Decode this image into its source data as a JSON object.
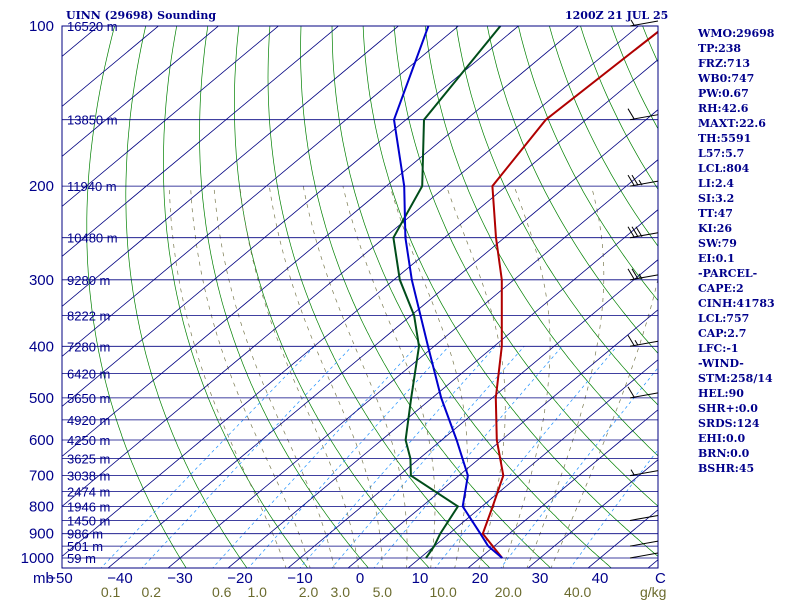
{
  "header": {
    "station": "UINN (29698) Sounding",
    "valid": "1200Z 21 JUL 25"
  },
  "indices": [
    "WMO:29698",
    "TP:238",
    "FRZ:713",
    "WB0:747",
    "PW:0.67",
    "RH:42.6",
    "MAXT:22.6",
    "TH:5591",
    "L57:5.7",
    "LCL:804",
    "LI:2.4",
    "SI:3.2",
    "TT:47",
    "KI:26",
    "SW:79",
    "EI:0.1",
    "-PARCEL-",
    "CAPE:2",
    "CINH:41783",
    "LCL:757",
    "CAP:2.7",
    "LFC:-1",
    "-WIND-",
    "STM:258/14",
    "HEL:90",
    "SHR+:0.0",
    "SRDS:124",
    "EHI:0.0",
    "BRN:0.0",
    "BSHR:45"
  ],
  "colors": {
    "frame": "#000080",
    "isobar": "#000080",
    "isotherm": "#000080",
    "dry_adiabat": "#008000",
    "moist_adiabat": "#7a7a50",
    "mixing_ratio": "#1e90ff",
    "temperature": "#b00000",
    "dewpoint": "#004d1a",
    "parcel": "#0000cd",
    "axis_text": "#00008b",
    "mix_text": "#6b6b2e"
  },
  "chart_data": {
    "type": "line",
    "title": "",
    "x_unit": "C",
    "y_unit": "mb",
    "mix_unit": "g/kg",
    "pressure_ticks": [
      100,
      200,
      300,
      400,
      500,
      600,
      700,
      800,
      900,
      1000
    ],
    "temp_ticks": [
      -50,
      -40,
      -30,
      -20,
      -10,
      0,
      10,
      20,
      30,
      40
    ],
    "mixing_ratio_labels": [
      "0.1",
      "0.2",
      "0.6",
      "1.0",
      "2.0",
      "3.0",
      "5.0",
      "10.0",
      "20.0",
      "40.0"
    ],
    "height_labels": [
      {
        "p": 100,
        "h": "16520 m"
      },
      {
        "p": 150,
        "h": "13850 m"
      },
      {
        "p": 200,
        "h": "11940 m"
      },
      {
        "p": 250,
        "h": "10480 m"
      },
      {
        "p": 300,
        "h": "9280 m"
      },
      {
        "p": 350,
        "h": "8222 m"
      },
      {
        "p": 400,
        "h": "7280 m"
      },
      {
        "p": 450,
        "h": "6420 m"
      },
      {
        "p": 500,
        "h": "5650 m"
      },
      {
        "p": 550,
        "h": "4920 m"
      },
      {
        "p": 600,
        "h": "4250 m"
      },
      {
        "p": 650,
        "h": "3625 m"
      },
      {
        "p": 700,
        "h": "3038 m"
      },
      {
        "p": 750,
        "h": "2474 m"
      },
      {
        "p": 800,
        "h": "1946 m"
      },
      {
        "p": 850,
        "h": "1450 m"
      },
      {
        "p": 900,
        "h": "986 m"
      },
      {
        "p": 950,
        "h": "501 m"
      },
      {
        "p": 1000,
        "h": "59 m"
      }
    ],
    "series": [
      {
        "key": "temperature",
        "points": [
          [
            1000,
            23.7
          ],
          [
            900,
            15.6
          ],
          [
            800,
            11.8
          ],
          [
            700,
            7.4
          ],
          [
            600,
            -0.8
          ],
          [
            500,
            -9.4
          ],
          [
            400,
            -18.7
          ],
          [
            300,
            -32.0
          ],
          [
            250,
            -41.4
          ],
          [
            200,
            -52.3
          ],
          [
            150,
            -56.7
          ],
          [
            100,
            -55.5
          ]
        ]
      },
      {
        "key": "dewpoint",
        "points": [
          [
            1000,
            11.0
          ],
          [
            950,
            10.0
          ],
          [
            900,
            8.5
          ],
          [
            800,
            6.0
          ],
          [
            700,
            -8.0
          ],
          [
            650,
            -11.5
          ],
          [
            600,
            -16.0
          ],
          [
            500,
            -23.5
          ],
          [
            400,
            -32.5
          ],
          [
            350,
            -39.5
          ],
          [
            300,
            -49.0
          ],
          [
            250,
            -58.5
          ],
          [
            200,
            -64.0
          ],
          [
            150,
            -77.0
          ],
          [
            100,
            -83.0
          ]
        ]
      },
      {
        "key": "parcel",
        "points": [
          [
            1000,
            23.7
          ],
          [
            950,
            19.0
          ],
          [
            900,
            15.2
          ],
          [
            800,
            6.8
          ],
          [
            700,
            1.5
          ],
          [
            600,
            -7.5
          ],
          [
            500,
            -18.5
          ],
          [
            400,
            -31.0
          ],
          [
            300,
            -47.0
          ],
          [
            250,
            -56.5
          ],
          [
            200,
            -67.0
          ],
          [
            150,
            -82.0
          ],
          [
            100,
            -95.0
          ]
        ]
      }
    ],
    "winds": [
      [
        1000,
        0
      ],
      [
        950,
        0
      ],
      [
        850,
        0
      ],
      [
        700,
        5
      ],
      [
        500,
        10
      ],
      [
        400,
        15
      ],
      [
        300,
        25
      ],
      [
        250,
        30
      ],
      [
        200,
        25
      ],
      [
        150,
        10
      ],
      [
        100,
        5
      ]
    ],
    "grid": true
  }
}
